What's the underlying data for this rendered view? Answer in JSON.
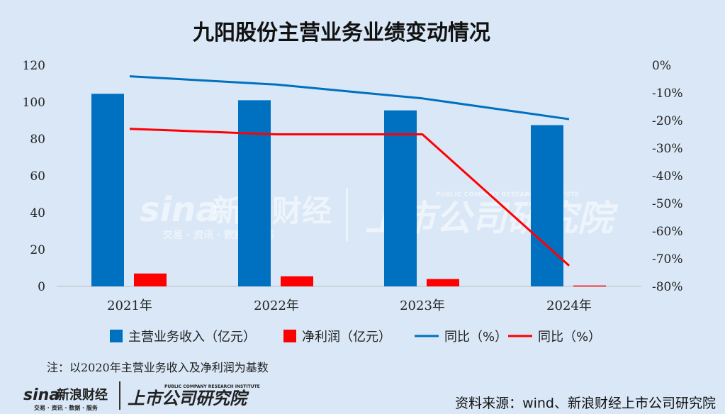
{
  "chart_data": {
    "type": "bar",
    "title": "九阳股份主营业务业绩变动情况",
    "categories": [
      "2021年",
      "2022年",
      "2023年",
      "2024年"
    ],
    "series": [
      {
        "name": "主营业务收入（亿元）",
        "kind": "bar",
        "axis": "left",
        "color": "#0070c0",
        "values": [
          104.5,
          101.0,
          95.5,
          87.5
        ]
      },
      {
        "name": "净利润（亿元）",
        "kind": "bar",
        "axis": "left",
        "color": "#ff0000",
        "values": [
          7.0,
          5.5,
          4.0,
          0.5
        ]
      },
      {
        "name": "同比（%）",
        "kind": "line",
        "axis": "right",
        "color": "#0070c0",
        "values": [
          -4,
          -7,
          -12,
          -19.5
        ]
      },
      {
        "name": "同比（%）",
        "kind": "line",
        "axis": "right",
        "color": "#ff0000",
        "values": [
          -23,
          -25,
          -25,
          -72.5
        ]
      }
    ],
    "y_left": {
      "min": 0,
      "max": 120,
      "ticks": [
        "0",
        "20",
        "40",
        "60",
        "80",
        "100",
        "120"
      ]
    },
    "y_right": {
      "min": -80,
      "max": 0,
      "ticks": [
        "0%",
        "-10%",
        "-20%",
        "-30%",
        "-40%",
        "-50%",
        "-60%",
        "-70%",
        "-80%"
      ]
    },
    "legend_position": "bottom",
    "grid": false
  },
  "note": "注：以2020年主营业务收入及净利润为基数",
  "source": "资料来源：wind、新浪财经上市公司研究院",
  "watermark": {
    "brand": "sina",
    "brand_cn": "新浪财经",
    "tagline": "交易 · 资讯 · 数据 · 服务",
    "institute": "上市公司研究院",
    "institute_en": "PUBLIC COMPANY RESEARCH INSTITUTE"
  },
  "colors": {
    "background": "#d9e7f6",
    "blue": "#0070c0",
    "red": "#ff0000"
  }
}
